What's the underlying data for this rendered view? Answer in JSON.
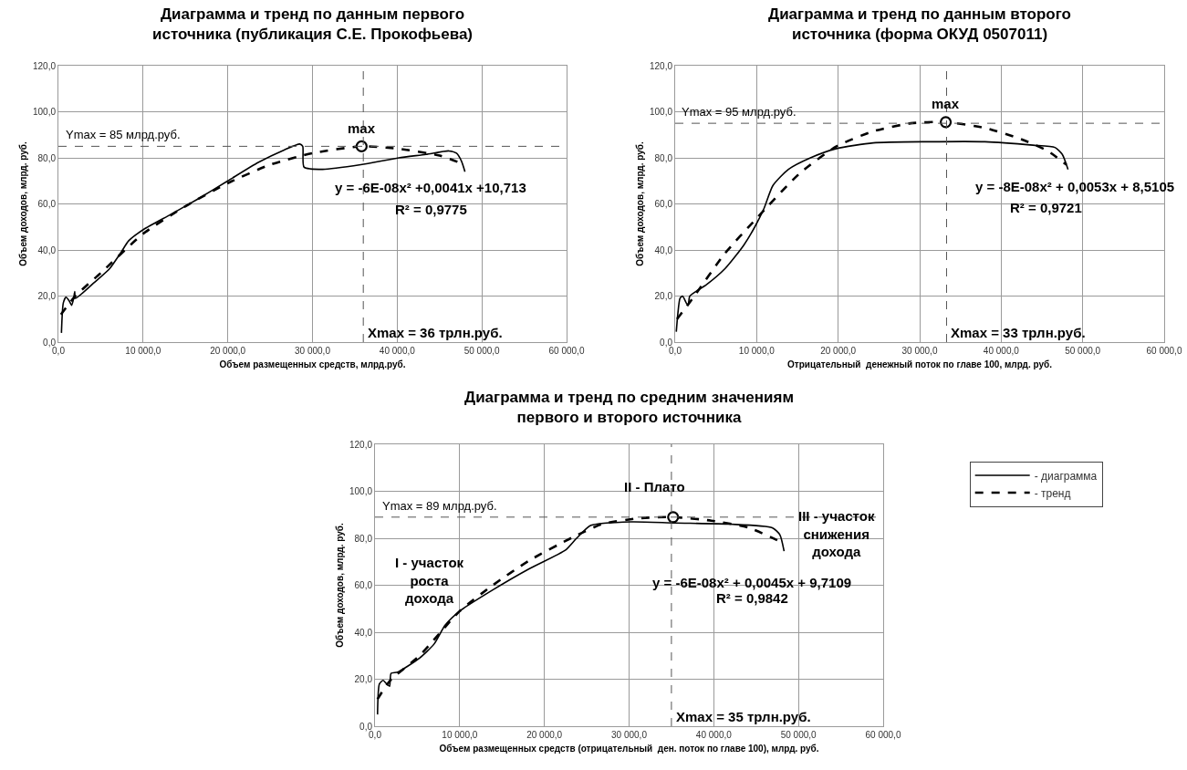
{
  "chart_data": [
    {
      "type": "line",
      "title": "Диаграмма и тренд по данным первого\nисточника (публикация С.Е. Прокофьева)",
      "xlabel": "Объем размещенных средств, млрд.руб.",
      "ylabel": "Объем доходов, млрд. руб.",
      "xlim": [
        0,
        60000
      ],
      "ylim": [
        0,
        120
      ],
      "xticks": [
        {
          "value": 0,
          "label": "0,0"
        },
        {
          "value": 10000,
          "label": "10 000,0"
        },
        {
          "value": 20000,
          "label": "20 000,0"
        },
        {
          "value": 30000,
          "label": "30 000,0"
        },
        {
          "value": 40000,
          "label": "40 000,0"
        },
        {
          "value": 50000,
          "label": "50 000,0"
        },
        {
          "value": 60000,
          "label": "60 000,0"
        }
      ],
      "yticks": [
        {
          "value": 0,
          "label": "0,0"
        },
        {
          "value": 20,
          "label": "20,0"
        },
        {
          "value": 40,
          "label": "40,0"
        },
        {
          "value": 60,
          "label": "60,0"
        },
        {
          "value": 80,
          "label": "80,0"
        },
        {
          "value": 100,
          "label": "100,0"
        },
        {
          "value": 120,
          "label": "120,0"
        }
      ],
      "grid": true,
      "legend": false,
      "series": [
        {
          "line_style": "solid",
          "color": "#000000",
          "x": [
            360,
            580,
            900,
            1260,
            1570,
            1800,
            1930,
            2000,
            4270,
            6070,
            7400,
            8300,
            10100,
            13300,
            16400,
            20000,
            23600,
            26700,
            28500,
            28850,
            29000,
            31200,
            35700,
            40200,
            43400,
            46100,
            47000,
            47600,
            48000
          ],
          "values": [
            4,
            17,
            19.5,
            18,
            16,
            19,
            22,
            19,
            26,
            32,
            39,
            44,
            49,
            55.5,
            62,
            70,
            78,
            83.5,
            86,
            85,
            76,
            75,
            77,
            80,
            81.5,
            83,
            82,
            78.5,
            74
          ]
        },
        {
          "line_style": "dashed",
          "color": "#000000",
          "x": [
            300,
            2000,
            5000,
            10000,
            15000,
            20000,
            25000,
            30000,
            35800,
            40000,
            45000,
            48000
          ],
          "values": [
            12,
            20,
            30,
            47,
            59,
            69,
            77,
            82,
            85,
            84,
            81,
            77
          ]
        },
        {
          "type": "scatter",
          "marker": "circle",
          "color": "#000000",
          "x": [
            35800
          ],
          "values": [
            85
          ]
        }
      ],
      "ref_lines": [
        {
          "axis": "y",
          "value": 85,
          "label": "Ymax = 85 млрд.руб.",
          "line_style": "dashed",
          "color": "#555555"
        },
        {
          "axis": "x",
          "value": 36000,
          "line_style": "dashed",
          "color": "#555555"
        }
      ],
      "annotations": [
        {
          "text": "max",
          "x": 35800,
          "y": 85
        },
        "y = -6E-08x² +0,0041x +10,713",
        "R² = 0,9775",
        "Xmax = 36 трлн.руб."
      ]
    },
    {
      "type": "line",
      "title": "Диаграмма и тренд по данным второго\nисточника (форма ОКУД 0507011)",
      "xlabel": "Отрицательный  денежный поток по главе 100, млрд. руб.",
      "ylabel": "Объем доходов, млрд. руб.",
      "xlim": [
        0,
        60000
      ],
      "ylim": [
        0,
        120
      ],
      "xticks": [
        {
          "value": 0,
          "label": "0,0"
        },
        {
          "value": 10000,
          "label": "10 000,0"
        },
        {
          "value": 20000,
          "label": "20 000,0"
        },
        {
          "value": 30000,
          "label": "30 000,0"
        },
        {
          "value": 40000,
          "label": "40 000,0"
        },
        {
          "value": 50000,
          "label": "50 000,0"
        },
        {
          "value": 60000,
          "label": "60 000,0"
        }
      ],
      "yticks": [
        {
          "value": 0,
          "label": "0,0"
        },
        {
          "value": 20,
          "label": "20,0"
        },
        {
          "value": 40,
          "label": "40,0"
        },
        {
          "value": 60,
          "label": "60,0"
        },
        {
          "value": 80,
          "label": "80,0"
        },
        {
          "value": 100,
          "label": "100,0"
        },
        {
          "value": 120,
          "label": "120,0"
        }
      ],
      "grid": true,
      "legend": false,
      "series": [
        {
          "line_style": "solid",
          "color": "#000000",
          "x": [
            140,
            320,
            590,
            910,
            1360,
            1600,
            1800,
            3860,
            6140,
            8400,
            9770,
            10900,
            12000,
            13900,
            16600,
            19800,
            24300,
            31100,
            38000,
            43900,
            46600,
            47500,
            48200
          ],
          "values": [
            4.5,
            12,
            19,
            20,
            17,
            16,
            20,
            25,
            32,
            42,
            50,
            58,
            68,
            75,
            80,
            84,
            86.5,
            87,
            87,
            85.5,
            84.5,
            81.5,
            75
          ]
        },
        {
          "line_style": "dashed",
          "color": "#000000",
          "x": [
            230,
            2050,
            6100,
            9800,
            15200,
            19800,
            24300,
            28900,
            33200,
            38000,
            42500,
            45700,
            48000
          ],
          "values": [
            10,
            18.5,
            38.5,
            53,
            73,
            85,
            91.5,
            95,
            95.5,
            93,
            88,
            83,
            77
          ]
        },
        {
          "type": "scatter",
          "marker": "circle",
          "color": "#000000",
          "x": [
            33200
          ],
          "values": [
            95.5
          ]
        }
      ],
      "ref_lines": [
        {
          "axis": "y",
          "value": 95,
          "label": "Ymax = 95 млрд.руб.",
          "line_style": "dashed",
          "color": "#555555"
        },
        {
          "axis": "x",
          "value": 33300,
          "line_style": "dashed",
          "color": "#555555"
        }
      ],
      "annotations": [
        {
          "text": "max",
          "x": 33200,
          "y": 95.5
        },
        "y = -8E-08x² + 0,0053x + 8,5105",
        "R² = 0,9721",
        "Xmax = 33 трлн.руб."
      ]
    },
    {
      "type": "line",
      "title": "Диаграмма и тренд по средним значениям\nпервого и второго источника",
      "xlabel": "Объем размещенных средств (отрицательный  ден. поток по главе 100), млрд. руб.",
      "ylabel": "Объем доходов, млрд. руб.",
      "xlim": [
        0,
        60000
      ],
      "ylim": [
        0,
        120
      ],
      "xticks": [
        {
          "value": 0,
          "label": "0,0"
        },
        {
          "value": 10000,
          "label": "10 000,0"
        },
        {
          "value": 20000,
          "label": "20 000,0"
        },
        {
          "value": 30000,
          "label": "30 000,0"
        },
        {
          "value": 40000,
          "label": "40 000,0"
        },
        {
          "value": 50000,
          "label": "50 000,0"
        },
        {
          "value": 60000,
          "label": "60 000,0"
        }
      ],
      "yticks": [
        {
          "value": 0,
          "label": "0,0"
        },
        {
          "value": 20,
          "label": "20,0"
        },
        {
          "value": 40,
          "label": "40,0"
        },
        {
          "value": 60,
          "label": "60,0"
        },
        {
          "value": 80,
          "label": "80,0"
        },
        {
          "value": 100,
          "label": "100,0"
        },
        {
          "value": 120,
          "label": "120,0"
        }
      ],
      "grid": true,
      "legend": "right",
      "series": [
        {
          "name": "- диаграмма",
          "line_style": "solid",
          "color": "#000000",
          "x": [
            300,
            520,
            950,
            1380,
            1720,
            1900,
            2670,
            5260,
            6980,
            8280,
            10000,
            13900,
            18200,
            22500,
            23800,
            25500,
            30300,
            35400,
            41900,
            46900,
            47800,
            48300
          ],
          "values": [
            5,
            18,
            19.5,
            18,
            17,
            22.5,
            23,
            29,
            35,
            43,
            49,
            58,
            67,
            75,
            80,
            85.5,
            87,
            86.5,
            86,
            84.5,
            81.5,
            74.5
          ]
        },
        {
          "name": "- тренд",
          "line_style": "dashed",
          "color": "#000000",
          "x": [
            300,
            1800,
            5260,
            10000,
            13900,
            18200,
            23400,
            26800,
            31100,
            35200,
            39700,
            44100,
            47900
          ],
          "values": [
            11.5,
            19.5,
            30,
            49,
            60,
            70.5,
            80.5,
            86,
            88.5,
            89,
            87.5,
            84.5,
            78.5
          ]
        },
        {
          "type": "scatter",
          "marker": "circle",
          "color": "#000000",
          "x": [
            35200
          ],
          "values": [
            89
          ]
        }
      ],
      "ref_lines": [
        {
          "axis": "y",
          "value": 89,
          "label": "Ymax = 89 млрд.руб.",
          "line_style": "dashed",
          "color": "#555555"
        },
        {
          "axis": "x",
          "value": 35000,
          "line_style": "dashed",
          "color": "#555555"
        }
      ],
      "annotations": [
        "II - Плато",
        "I - участок\nроста\nдохода",
        "III - участок\nснижения\nдохода",
        "y = -6E-08x² + 0,0045x + 9,7109",
        "R² = 0,9842",
        "Xmax = 35 трлн.руб."
      ]
    }
  ]
}
